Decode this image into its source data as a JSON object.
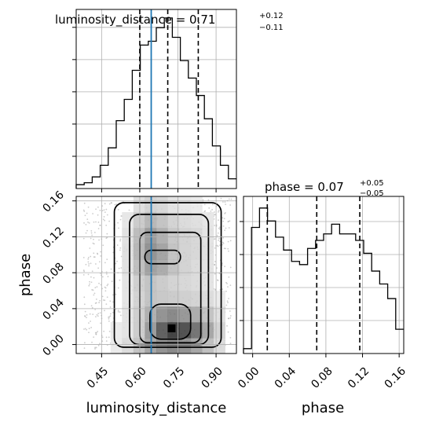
{
  "chart_data": {
    "type": "corner",
    "parameters": [
      "luminosity_distance",
      "phase"
    ],
    "injection": {
      "luminosity_distance": 0.645,
      "color": "#1f77b4"
    },
    "contour_fill_color": "#000000",
    "titles": {
      "luminosity_distance": {
        "prefix": "luminosity_distance = ",
        "value": "0.71",
        "plus": "+0.12",
        "minus": "−0.11"
      },
      "phase": {
        "prefix": "phase = ",
        "value": "0.07",
        "plus": "+0.05",
        "minus": "−0.05"
      }
    },
    "quantiles": {
      "luminosity_distance": [
        0.6,
        0.71,
        0.83
      ],
      "phase": [
        0.016,
        0.07,
        0.117
      ]
    },
    "axes": {
      "luminosity_distance": {
        "label": "luminosity_distance",
        "range": [
          0.35,
          0.98
        ],
        "ticks": [
          0.45,
          0.6,
          0.75,
          0.9
        ],
        "tick_labels": [
          "0.45",
          "0.60",
          "0.75",
          "0.90"
        ]
      },
      "phase": {
        "label": "phase",
        "range": [
          -0.01,
          0.165
        ],
        "ticks": [
          0.0,
          0.04,
          0.08,
          0.12,
          0.16
        ],
        "tick_labels": [
          "0.00",
          "0.04",
          "0.08",
          "0.12",
          "0.16"
        ]
      }
    },
    "hist_luminosity_distance": {
      "edges": [
        0.35,
        0.3815,
        0.413,
        0.4445,
        0.476,
        0.5075,
        0.539,
        0.5705,
        0.602,
        0.6335,
        0.665,
        0.6965,
        0.728,
        0.7595,
        0.791,
        0.8225,
        0.854,
        0.8855,
        0.917,
        0.9485,
        0.98
      ],
      "counts": [
        2,
        3,
        6,
        12,
        21,
        35,
        46,
        61,
        74,
        76,
        83,
        88,
        78,
        66,
        57,
        48,
        36,
        22,
        12,
        5
      ]
    },
    "hist_phase": {
      "edges": [
        -0.01,
        -0.00125,
        0.0075,
        0.01625,
        0.025,
        0.03375,
        0.0425,
        0.05125,
        0.06,
        0.06875,
        0.0775,
        0.08625,
        0.095,
        0.10375,
        0.1125,
        0.12125,
        0.13,
        0.13875,
        0.1475,
        0.15625,
        0.165
      ],
      "counts": [
        3,
        78,
        90,
        82,
        72,
        64,
        57,
        55,
        65,
        70,
        74,
        80,
        74,
        74,
        70,
        62,
        51,
        43,
        34,
        15
      ]
    },
    "density_2d": {
      "x_range": [
        0.35,
        0.98
      ],
      "y_range": [
        -0.01,
        0.165
      ],
      "nx": 14,
      "ny": 10,
      "bins": [
        [
          0.02,
          0.04,
          0.06,
          0.1,
          0.18,
          0.3,
          0.45,
          0.55,
          0.6,
          0.55,
          0.45,
          0.32,
          0.18,
          0.08
        ],
        [
          0.02,
          0.04,
          0.06,
          0.1,
          0.14,
          0.25,
          0.5,
          0.8,
          0.95,
          0.88,
          0.7,
          0.45,
          0.22,
          0.08
        ],
        [
          0.02,
          0.03,
          0.05,
          0.09,
          0.14,
          0.24,
          0.4,
          0.55,
          0.6,
          0.52,
          0.42,
          0.3,
          0.16,
          0.06
        ],
        [
          0.02,
          0.03,
          0.05,
          0.08,
          0.13,
          0.22,
          0.3,
          0.28,
          0.26,
          0.24,
          0.22,
          0.18,
          0.1,
          0.04
        ],
        [
          0.02,
          0.03,
          0.05,
          0.08,
          0.13,
          0.24,
          0.3,
          0.26,
          0.22,
          0.2,
          0.18,
          0.14,
          0.08,
          0.03
        ],
        [
          0.02,
          0.03,
          0.05,
          0.08,
          0.15,
          0.32,
          0.48,
          0.42,
          0.3,
          0.22,
          0.18,
          0.14,
          0.08,
          0.03
        ],
        [
          0.02,
          0.03,
          0.05,
          0.08,
          0.16,
          0.36,
          0.55,
          0.46,
          0.3,
          0.22,
          0.2,
          0.15,
          0.08,
          0.03
        ],
        [
          0.02,
          0.03,
          0.05,
          0.08,
          0.15,
          0.34,
          0.5,
          0.4,
          0.28,
          0.22,
          0.2,
          0.14,
          0.07,
          0.03
        ],
        [
          0.01,
          0.02,
          0.04,
          0.07,
          0.12,
          0.26,
          0.36,
          0.3,
          0.22,
          0.18,
          0.16,
          0.12,
          0.06,
          0.02
        ],
        [
          0.01,
          0.02,
          0.03,
          0.05,
          0.08,
          0.16,
          0.22,
          0.2,
          0.14,
          0.12,
          0.1,
          0.08,
          0.04,
          0.02
        ]
      ]
    },
    "contour_levels": [
      0.12,
      0.28,
      0.48,
      0.72
    ]
  }
}
